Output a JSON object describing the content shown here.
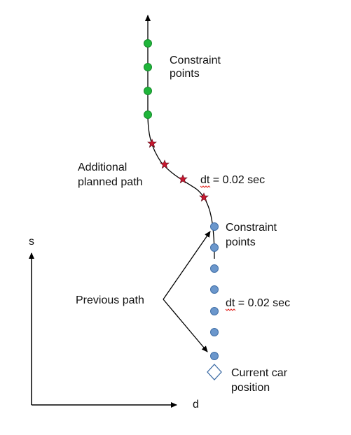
{
  "axes": {
    "s_label": "s",
    "d_label": "d"
  },
  "labels": {
    "constraint_points_top_line1": "Constraint",
    "constraint_points_top_line2": "points",
    "additional_planned_path_line1": "Additional",
    "additional_planned_path_line2": "planned path",
    "dt_upper": "dt = 0.02 sec",
    "constraint_points_mid_line1": "Constraint",
    "constraint_points_mid_line2": "points",
    "previous_path": "Previous path",
    "dt_lower": "dt = 0.02 sec",
    "current_car_position_line1": "Current car",
    "current_car_position_line2": "position"
  },
  "icons": {
    "green_points": "green-circle-icon",
    "planned_points": "red-star-icon",
    "previous_points": "blue-circle-icon",
    "car": "diamond-icon"
  },
  "colors": {
    "green_point": "#1fb53a",
    "green_point_stroke": "#15882a",
    "star": "#c8172e",
    "star_stroke": "#5a0d1a",
    "blue_point": "#6b97cc",
    "blue_point_stroke": "#3f6ea6",
    "diamond_stroke": "#3f6ea6",
    "line": "#000000",
    "squiggle": "#e0221c"
  }
}
